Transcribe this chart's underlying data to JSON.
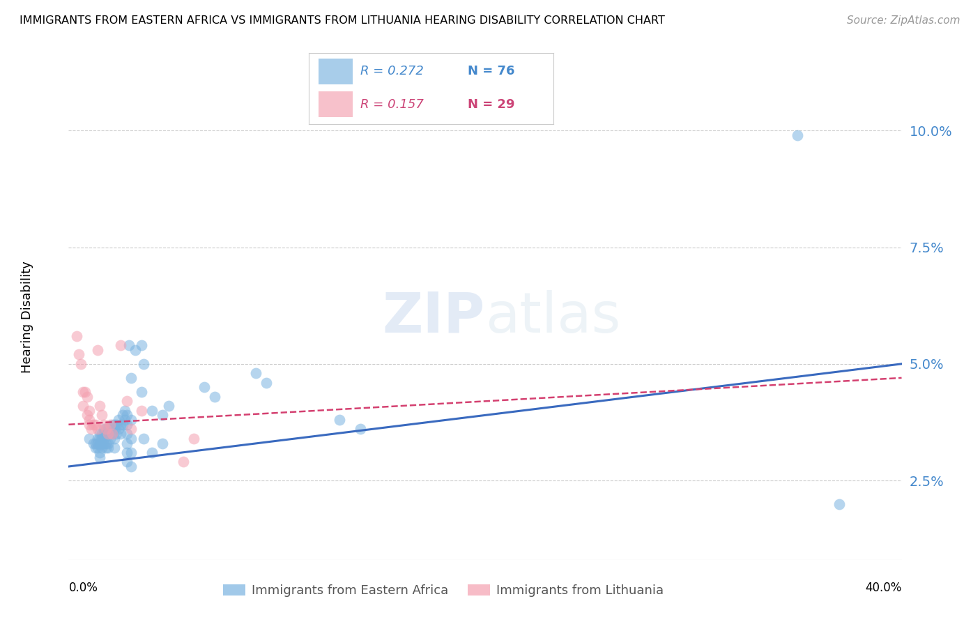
{
  "title": "IMMIGRANTS FROM EASTERN AFRICA VS IMMIGRANTS FROM LITHUANIA HEARING DISABILITY CORRELATION CHART",
  "source": "Source: ZipAtlas.com",
  "ylabel": "Hearing Disability",
  "ytick_labels": [
    "2.5%",
    "5.0%",
    "7.5%",
    "10.0%"
  ],
  "ytick_values": [
    0.025,
    0.05,
    0.075,
    0.1
  ],
  "xlim": [
    0.0,
    0.4
  ],
  "ylim": [
    0.008,
    0.112
  ],
  "blue_color": "#7ab3e0",
  "pink_color": "#f4a0b0",
  "trendline_blue_color": "#3a6abf",
  "trendline_pink_color": "#d44070",
  "legend_text_blue": "#4488cc",
  "legend_text_pink": "#cc4477",
  "watermark": "ZIPatlas",
  "blue_scatter": [
    [
      0.01,
      0.034
    ],
    [
      0.012,
      0.033
    ],
    [
      0.013,
      0.033
    ],
    [
      0.013,
      0.032
    ],
    [
      0.014,
      0.034
    ],
    [
      0.014,
      0.033
    ],
    [
      0.014,
      0.032
    ],
    [
      0.015,
      0.035
    ],
    [
      0.015,
      0.034
    ],
    [
      0.015,
      0.033
    ],
    [
      0.015,
      0.031
    ],
    [
      0.015,
      0.03
    ],
    [
      0.016,
      0.035
    ],
    [
      0.016,
      0.034
    ],
    [
      0.016,
      0.033
    ],
    [
      0.016,
      0.032
    ],
    [
      0.017,
      0.036
    ],
    [
      0.017,
      0.035
    ],
    [
      0.017,
      0.034
    ],
    [
      0.017,
      0.033
    ],
    [
      0.018,
      0.036
    ],
    [
      0.018,
      0.035
    ],
    [
      0.018,
      0.033
    ],
    [
      0.018,
      0.032
    ],
    [
      0.019,
      0.036
    ],
    [
      0.019,
      0.035
    ],
    [
      0.019,
      0.033
    ],
    [
      0.019,
      0.032
    ],
    [
      0.02,
      0.036
    ],
    [
      0.02,
      0.034
    ],
    [
      0.021,
      0.037
    ],
    [
      0.021,
      0.035
    ],
    [
      0.022,
      0.037
    ],
    [
      0.022,
      0.036
    ],
    [
      0.022,
      0.034
    ],
    [
      0.022,
      0.032
    ],
    [
      0.023,
      0.037
    ],
    [
      0.023,
      0.035
    ],
    [
      0.024,
      0.038
    ],
    [
      0.024,
      0.036
    ],
    [
      0.025,
      0.037
    ],
    [
      0.025,
      0.035
    ],
    [
      0.026,
      0.039
    ],
    [
      0.026,
      0.037
    ],
    [
      0.027,
      0.04
    ],
    [
      0.027,
      0.038
    ],
    [
      0.028,
      0.039
    ],
    [
      0.028,
      0.037
    ],
    [
      0.028,
      0.035
    ],
    [
      0.028,
      0.033
    ],
    [
      0.028,
      0.031
    ],
    [
      0.028,
      0.029
    ],
    [
      0.029,
      0.054
    ],
    [
      0.03,
      0.047
    ],
    [
      0.03,
      0.038
    ],
    [
      0.03,
      0.034
    ],
    [
      0.03,
      0.031
    ],
    [
      0.03,
      0.028
    ],
    [
      0.032,
      0.053
    ],
    [
      0.035,
      0.054
    ],
    [
      0.035,
      0.044
    ],
    [
      0.036,
      0.05
    ],
    [
      0.036,
      0.034
    ],
    [
      0.04,
      0.04
    ],
    [
      0.04,
      0.031
    ],
    [
      0.045,
      0.039
    ],
    [
      0.045,
      0.033
    ],
    [
      0.048,
      0.041
    ],
    [
      0.065,
      0.045
    ],
    [
      0.07,
      0.043
    ],
    [
      0.09,
      0.048
    ],
    [
      0.095,
      0.046
    ],
    [
      0.13,
      0.038
    ],
    [
      0.14,
      0.036
    ],
    [
      0.35,
      0.099
    ],
    [
      0.37,
      0.02
    ]
  ],
  "pink_scatter": [
    [
      0.004,
      0.056
    ],
    [
      0.005,
      0.052
    ],
    [
      0.006,
      0.05
    ],
    [
      0.007,
      0.044
    ],
    [
      0.007,
      0.041
    ],
    [
      0.008,
      0.044
    ],
    [
      0.009,
      0.043
    ],
    [
      0.009,
      0.039
    ],
    [
      0.01,
      0.04
    ],
    [
      0.01,
      0.038
    ],
    [
      0.01,
      0.037
    ],
    [
      0.011,
      0.036
    ],
    [
      0.012,
      0.037
    ],
    [
      0.013,
      0.037
    ],
    [
      0.014,
      0.053
    ],
    [
      0.014,
      0.036
    ],
    [
      0.015,
      0.041
    ],
    [
      0.016,
      0.039
    ],
    [
      0.017,
      0.037
    ],
    [
      0.018,
      0.036
    ],
    [
      0.019,
      0.035
    ],
    [
      0.02,
      0.037
    ],
    [
      0.021,
      0.035
    ],
    [
      0.025,
      0.054
    ],
    [
      0.028,
      0.042
    ],
    [
      0.03,
      0.036
    ],
    [
      0.035,
      0.04
    ],
    [
      0.055,
      0.029
    ],
    [
      0.06,
      0.034
    ]
  ],
  "blue_trend_x": [
    0.0,
    0.4
  ],
  "blue_trend_y": [
    0.028,
    0.05
  ],
  "pink_trend_x": [
    0.0,
    0.4
  ],
  "pink_trend_y": [
    0.037,
    0.047
  ]
}
